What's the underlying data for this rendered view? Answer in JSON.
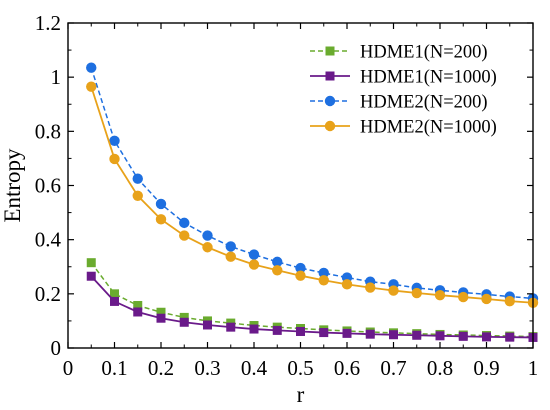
{
  "chart_data": {
    "type": "line",
    "title": "",
    "xlabel": "r",
    "ylabel": "Entropy",
    "xlim": [
      0,
      1
    ],
    "ylim": [
      0,
      1.2
    ],
    "xticks": [
      0,
      0.1,
      0.2,
      0.3,
      0.4,
      0.5,
      0.6,
      0.7,
      0.8,
      0.9,
      1
    ],
    "xtick_labels": [
      "0",
      "0.1",
      "0.2",
      "0.3",
      "0.4",
      "0.5",
      "0.6",
      "0.7",
      "0.8",
      "0.9",
      "1"
    ],
    "yticks": [
      0,
      0.2,
      0.4,
      0.6,
      0.8,
      1,
      1.2
    ],
    "ytick_labels": [
      "0",
      "0.2",
      "0.4",
      "0.6",
      "0.8",
      "1",
      "1.2"
    ],
    "grid": false,
    "legend_position": "top-right",
    "x": [
      0.05,
      0.1,
      0.15,
      0.2,
      0.25,
      0.3,
      0.35,
      0.4,
      0.45,
      0.5,
      0.55,
      0.6,
      0.65,
      0.7,
      0.75,
      0.8,
      0.85,
      0.9,
      0.95,
      1.0
    ],
    "series": [
      {
        "name": "HDME1(N=200)",
        "color": "#6aab2e",
        "marker": "square",
        "line_style": "dashed",
        "values": [
          0.315,
          0.2,
          0.157,
          0.132,
          0.113,
          0.1,
          0.092,
          0.083,
          0.077,
          0.072,
          0.067,
          0.063,
          0.059,
          0.056,
          0.053,
          0.05,
          0.048,
          0.046,
          0.044,
          0.042
        ]
      },
      {
        "name": "HDME1(N=1000)",
        "color": "#6a1a8a",
        "marker": "square",
        "line_style": "solid",
        "values": [
          0.265,
          0.172,
          0.133,
          0.11,
          0.095,
          0.085,
          0.077,
          0.07,
          0.065,
          0.061,
          0.057,
          0.054,
          0.051,
          0.049,
          0.047,
          0.045,
          0.043,
          0.041,
          0.04,
          0.039
        ]
      },
      {
        "name": "HDME2(N=200)",
        "color": "#1e6fe0",
        "marker": "circle",
        "line_style": "dashed",
        "values": [
          1.035,
          0.765,
          0.625,
          0.532,
          0.462,
          0.415,
          0.375,
          0.345,
          0.318,
          0.295,
          0.277,
          0.26,
          0.245,
          0.235,
          0.222,
          0.213,
          0.205,
          0.198,
          0.19,
          0.183
        ]
      },
      {
        "name": "HDME2(N=1000)",
        "color": "#e8a21a",
        "marker": "circle",
        "line_style": "solid",
        "values": [
          0.965,
          0.698,
          0.562,
          0.475,
          0.415,
          0.372,
          0.337,
          0.308,
          0.287,
          0.267,
          0.25,
          0.235,
          0.223,
          0.212,
          0.203,
          0.195,
          0.188,
          0.181,
          0.173,
          0.167
        ]
      }
    ]
  }
}
